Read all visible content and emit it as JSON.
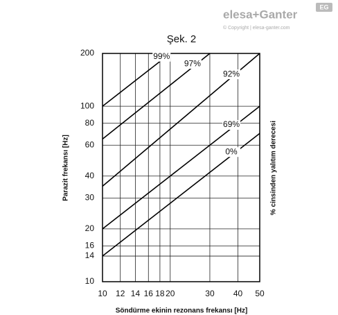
{
  "brand": {
    "name": "elesa+Ganter",
    "copyright": "© Copyright | elesa-ganter.com",
    "badge": "EG"
  },
  "chart_data": {
    "type": "line",
    "title": "Şek. 2",
    "xlabel": "Söndürme ekinin rezonans frekansı [Hz]",
    "ylabel": "Parazit frekansı [Hz]",
    "y2label": "% cinsinden yalıtım derecesi",
    "xscale": "log",
    "yscale": "log",
    "xlim": [
      10,
      50
    ],
    "ylim": [
      10,
      200
    ],
    "xticks": [
      10,
      12,
      14,
      16,
      18,
      20,
      30,
      40,
      50
    ],
    "yticks": [
      10,
      14,
      16,
      20,
      30,
      40,
      60,
      80,
      100,
      200
    ],
    "grid": true,
    "series": [
      {
        "name": "99%",
        "color": "#000000",
        "x": [
          10,
          20
        ],
        "values": [
          100,
          200
        ]
      },
      {
        "name": "97%",
        "color": "#000000",
        "x": [
          10,
          30
        ],
        "values": [
          65,
          200
        ]
      },
      {
        "name": "92%",
        "color": "#000000",
        "x": [
          10,
          50
        ],
        "values": [
          35,
          200
        ]
      },
      {
        "name": "69%",
        "color": "#000000",
        "x": [
          10,
          50
        ],
        "values": [
          20,
          100
        ]
      },
      {
        "name": "0%",
        "color": "#000000",
        "x": [
          10,
          50
        ],
        "values": [
          14,
          70
        ]
      }
    ]
  }
}
